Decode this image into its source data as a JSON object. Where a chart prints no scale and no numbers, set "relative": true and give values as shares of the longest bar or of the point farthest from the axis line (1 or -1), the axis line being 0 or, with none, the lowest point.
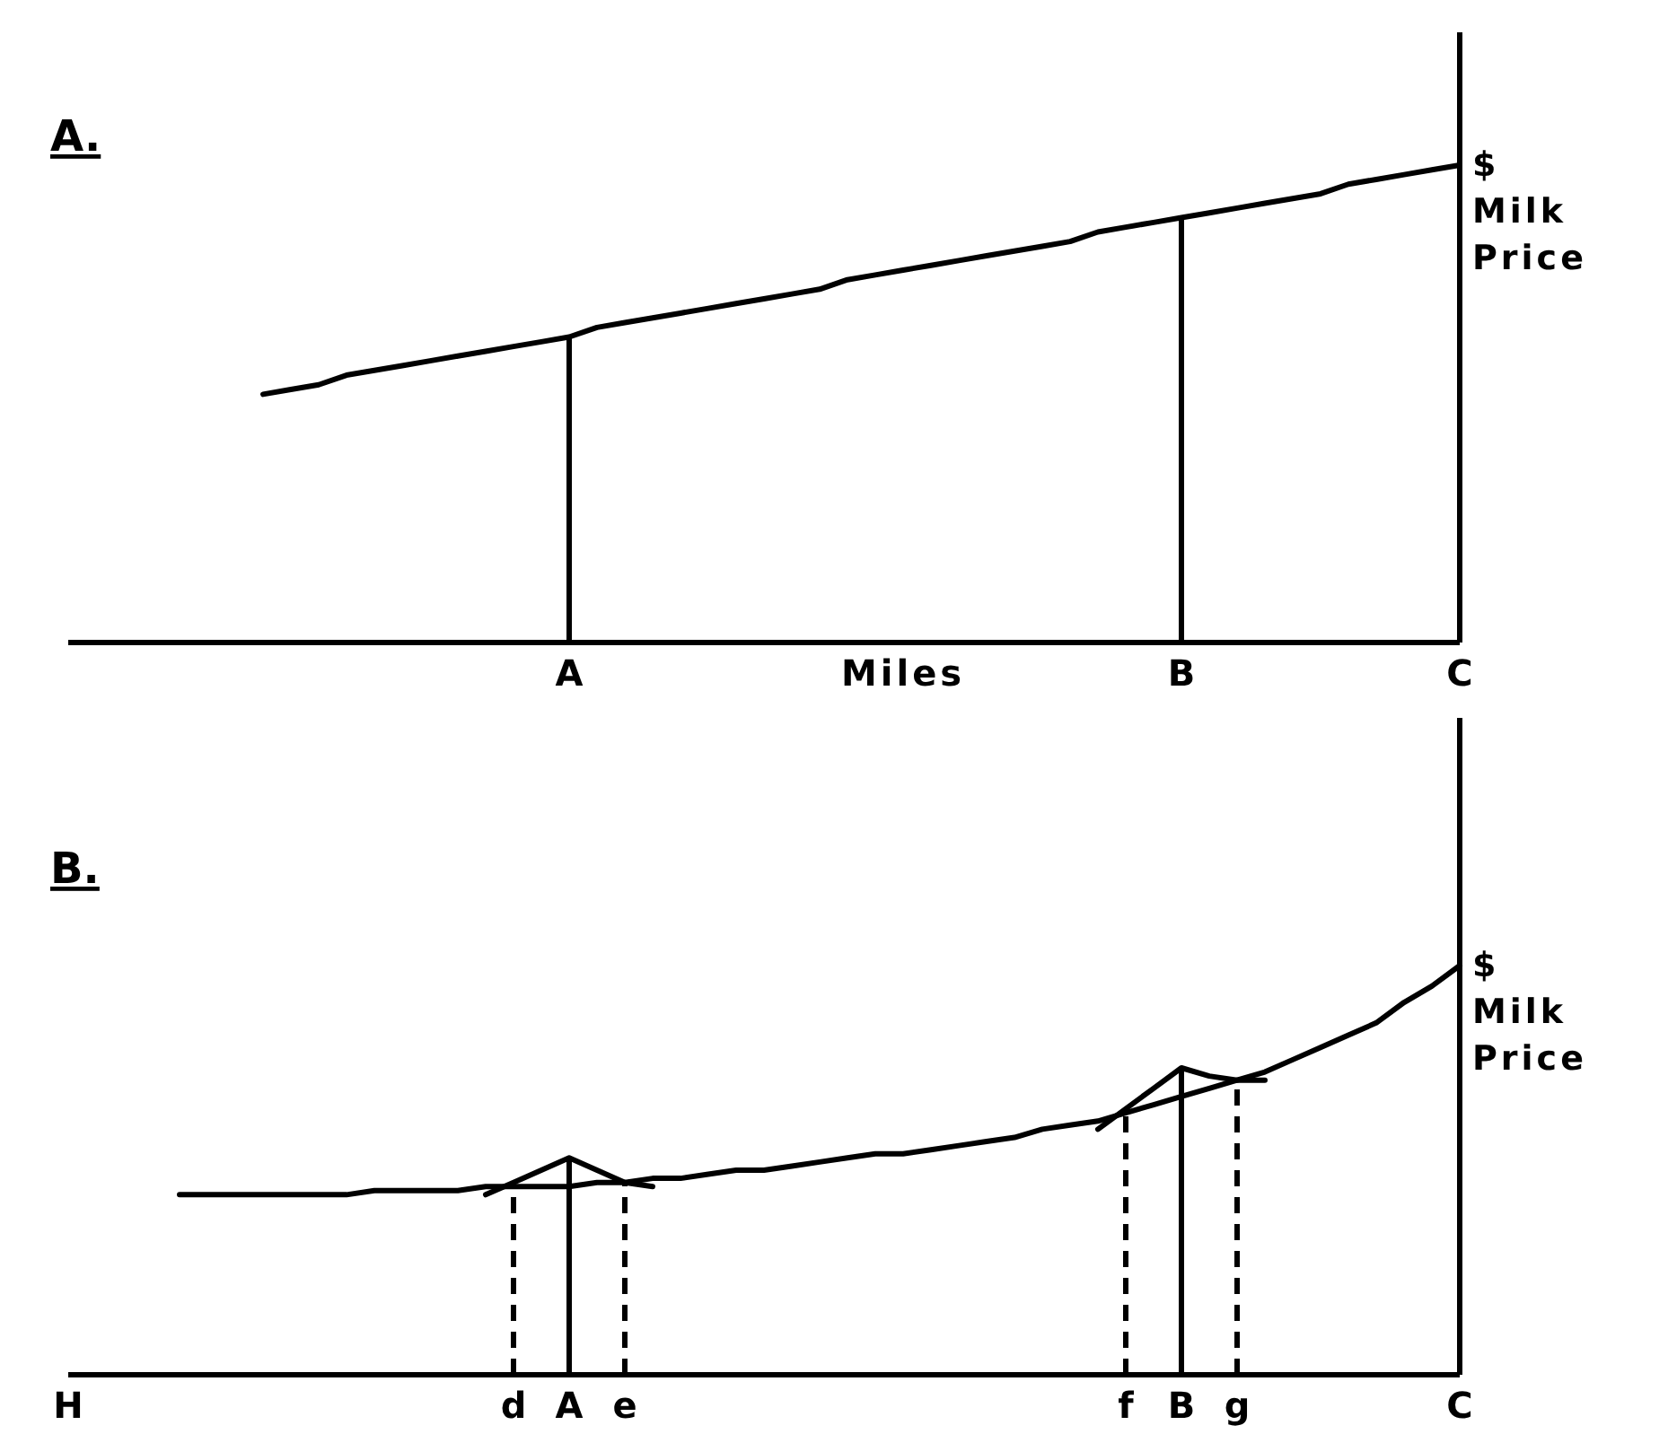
{
  "chart_data": [
    {
      "type": "line",
      "title": "A.",
      "xlabel": "Miles",
      "ylabel": "$ Milk Price",
      "relative": true,
      "tick_labels": "x",
      "categories": [
        null,
        null,
        null,
        null,
        null,
        null,
        null,
        null,
        null,
        null,
        null,
        null,
        null,
        null,
        null,
        null,
        null,
        null,
        "A",
        null,
        null,
        null,
        null,
        null,
        null,
        null,
        null,
        null,
        null,
        null,
        null,
        null,
        null,
        null,
        null,
        null,
        null,
        null,
        null,
        null,
        "B",
        null,
        null,
        null,
        null,
        null,
        null,
        null,
        null,
        null,
        "C"
      ],
      "series": [
        {
          "color": "#000000",
          "values": [
            null,
            null,
            null,
            null,
            null,
            null,
            null,
            0.52,
            0.53,
            0.54,
            0.56,
            0.57,
            0.58,
            0.59,
            0.6,
            0.61,
            0.62,
            0.63,
            0.64,
            0.66,
            0.67,
            0.68,
            0.69,
            0.7,
            0.71,
            0.72,
            0.73,
            0.74,
            0.76,
            0.77,
            0.78,
            0.79,
            0.8,
            0.81,
            0.82,
            0.83,
            0.84,
            0.86,
            0.87,
            0.88,
            0.89,
            0.9,
            0.91,
            0.92,
            0.93,
            0.94,
            0.96,
            0.97,
            0.98,
            0.99,
            1
          ]
        }
      ],
      "ref_lines": [
        {
          "axis": "x",
          "value": "A",
          "color": "#000000"
        },
        {
          "axis": "x",
          "value": "B",
          "color": "#000000"
        }
      ]
    },
    {
      "type": "line",
      "title": "B.",
      "ylabel": "$ Milk Price",
      "relative": true,
      "tick_labels": "x",
      "categories": [
        "H",
        null,
        null,
        null,
        null,
        null,
        null,
        null,
        null,
        null,
        null,
        null,
        null,
        null,
        null,
        null,
        "d",
        null,
        "A",
        null,
        "e",
        null,
        null,
        null,
        null,
        null,
        null,
        null,
        null,
        null,
        null,
        null,
        null,
        null,
        null,
        null,
        null,
        null,
        "f",
        null,
        "B",
        null,
        "g",
        null,
        null,
        null,
        null,
        null,
        null,
        null,
        "C"
      ],
      "series": [
        {
          "color": "#000000",
          "values": [
            null,
            null,
            null,
            null,
            0.44,
            0.44,
            0.44,
            0.44,
            0.44,
            0.44,
            0.44,
            0.45,
            0.45,
            0.45,
            0.45,
            0.46,
            0.46,
            0.46,
            0.46,
            0.47,
            0.47,
            0.48,
            0.48,
            0.49,
            0.5,
            0.5,
            0.51,
            0.52,
            0.53,
            0.54,
            0.54,
            0.55,
            0.56,
            0.57,
            0.58,
            0.6,
            0.61,
            0.62,
            0.64,
            0.66,
            0.68,
            0.7,
            0.72,
            0.74,
            0.77,
            0.8,
            0.83,
            0.86,
            0.91,
            0.95,
            1
          ]
        },
        {
          "color": "#000000",
          "values": [
            null,
            null,
            null,
            null,
            null,
            null,
            null,
            null,
            null,
            null,
            null,
            null,
            null,
            null,
            null,
            0.44,
            0.47,
            0.5,
            0.53,
            0.5,
            0.47,
            0.46,
            null,
            null,
            null,
            null,
            null,
            null,
            null,
            null,
            null,
            null,
            null,
            null,
            null,
            null,
            null,
            0.6,
            0.65,
            0.7,
            0.75,
            0.73,
            0.72,
            0.72,
            null,
            null,
            null,
            null,
            null,
            null,
            null
          ]
        }
      ],
      "ref_lines": [
        {
          "axis": "x",
          "value": "d",
          "color": "#000000",
          "line_style": "dashed"
        },
        {
          "axis": "x",
          "value": "A",
          "color": "#000000",
          "line_style": "solid"
        },
        {
          "axis": "x",
          "value": "e",
          "color": "#000000",
          "line_style": "dashed"
        },
        {
          "axis": "x",
          "value": "f",
          "color": "#000000",
          "line_style": "dashed"
        },
        {
          "axis": "x",
          "value": "B",
          "color": "#000000",
          "line_style": "solid"
        },
        {
          "axis": "x",
          "value": "g",
          "color": "#000000",
          "line_style": "dashed"
        }
      ]
    }
  ]
}
